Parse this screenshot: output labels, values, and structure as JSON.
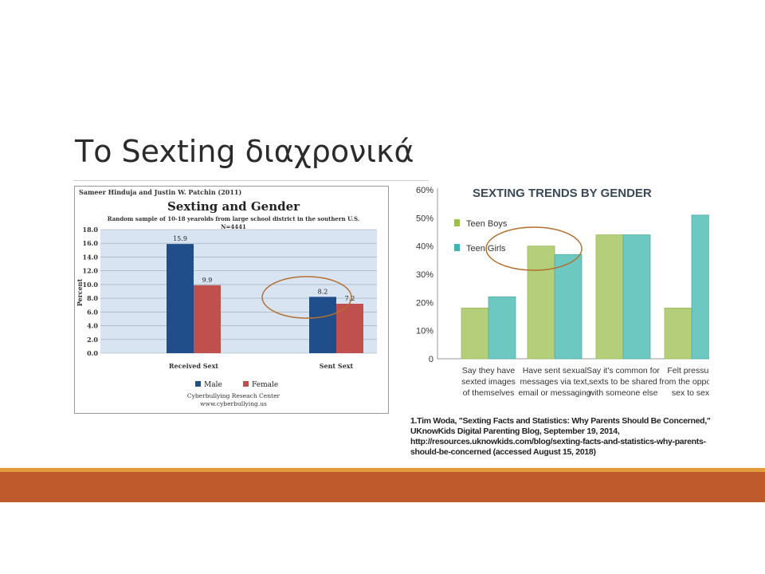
{
  "slide": {
    "title": "Το  Sexting διαχρονικά",
    "citation_lines": [
      "1.Tim Woda, \"Sexting Facts and Statistics: Why Parents Should Be Concerned,\"",
      "UKnowKids Digital Parenting Blog, September 19, 2014,",
      "http://resources.uknowkids.com/blog/sexting-facts-and-statistics-why-parents-",
      "should-be-concerned (accessed August 15, 2018)"
    ]
  },
  "colors": {
    "male": "#1f4e8a",
    "female": "#c0504d",
    "teen_boys": "#b4ce7a",
    "teen_girls": "#6cc8c0",
    "highlight_ellipse": "#b3702f",
    "footer_thin": "#e39a3b",
    "footer_thick": "#bf5a2c"
  },
  "chart_data": [
    {
      "type": "bar",
      "authors": "Sameer Hinduja and Justin W. Patchin (2011)",
      "title": "Sexting and Gender",
      "subtitle_lines": [
        "Random sample of  10-18 yearolds from large school district in the southern U.S.",
        "N=4441"
      ],
      "ylabel": "Percent",
      "ylim": [
        0,
        18
      ],
      "yticks": [
        "0.0",
        "2.0",
        "4.0",
        "6.0",
        "8.0",
        "10.0",
        "12.0",
        "14.0",
        "16.0",
        "18.0"
      ],
      "categories": [
        "Received Sext",
        "Sent Sext"
      ],
      "series": [
        {
          "name": "Male",
          "values": [
            15.9,
            8.2
          ],
          "labels": [
            "15.9",
            "8.2"
          ]
        },
        {
          "name": "Female",
          "values": [
            9.9,
            7.2
          ],
          "labels": [
            "9.9",
            "7.2"
          ]
        }
      ],
      "source_lines": [
        "Cyberbullying Reseach Center",
        "www.cyberbullying.us"
      ],
      "grid": true,
      "legend": "bottom",
      "highlight": "Sent Sext"
    },
    {
      "type": "bar",
      "title": "SEXTING TRENDS BY GENDER",
      "ylim": [
        0,
        60
      ],
      "yticks": [
        "0",
        "10%",
        "20%",
        "30%",
        "40%",
        "50%",
        "60%"
      ],
      "categories": [
        [
          "Say they have",
          "sexted images",
          "of themselves"
        ],
        [
          "Have sent sexual",
          "messages via text,",
          "email or messaging"
        ],
        [
          "Say it's common for",
          "sexts to be shared",
          "with someone else"
        ],
        [
          "Felt pressure",
          "from the opposite",
          "sex to sext"
        ]
      ],
      "series": [
        {
          "name": "Teen Boys",
          "values": [
            18,
            40,
            44,
            18
          ]
        },
        {
          "name": "Teen Girls",
          "values": [
            22,
            37,
            44,
            51
          ]
        }
      ],
      "legend": "top-left",
      "highlight": "Have sent sexual messages"
    }
  ]
}
